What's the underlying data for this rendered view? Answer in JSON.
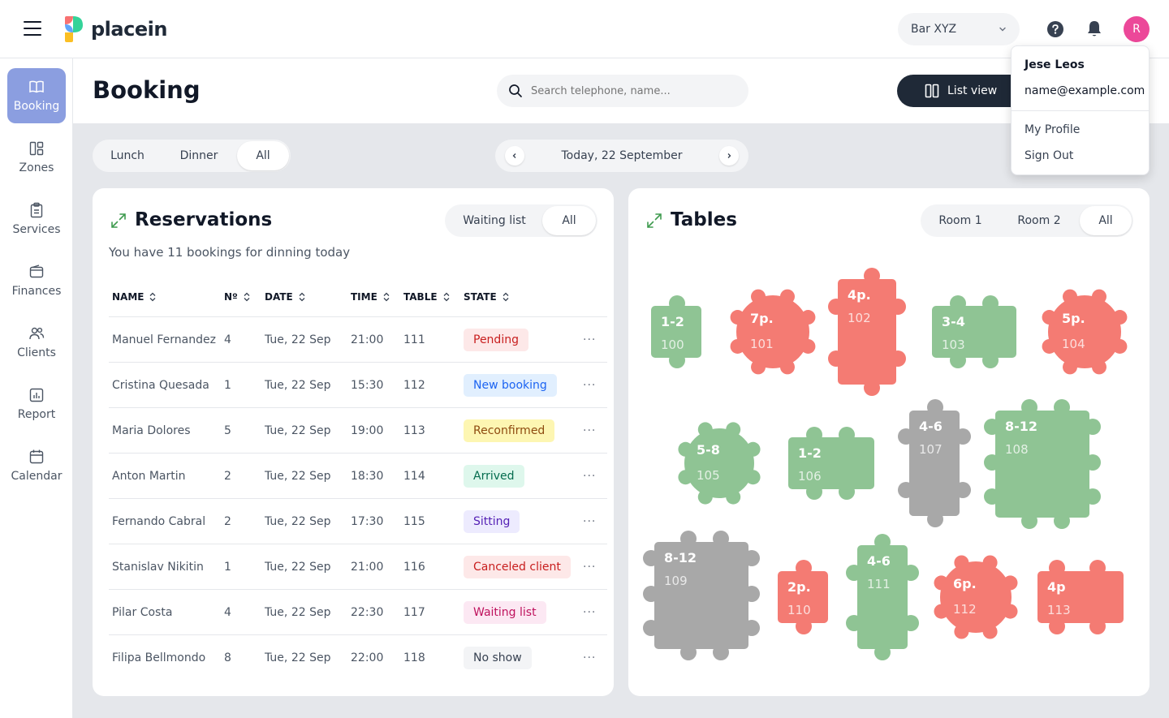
{
  "app": {
    "logo_text": "placein"
  },
  "topbar": {
    "venue": "Bar XYZ",
    "avatar_initial": "R",
    "colors": {
      "avatar": "#ec4899"
    }
  },
  "user_menu": {
    "name": "Jese Leos",
    "email": "name@example.com",
    "items": [
      "My Profile",
      "Sign Out"
    ]
  },
  "sidebar": {
    "items": [
      {
        "label": "Booking",
        "icon": "book-icon",
        "active": true
      },
      {
        "label": "Zones",
        "icon": "layout-icon"
      },
      {
        "label": "Services",
        "icon": "clipboard-icon"
      },
      {
        "label": "Finances",
        "icon": "wallet-icon"
      },
      {
        "label": "Clients",
        "icon": "users-icon"
      },
      {
        "label": "Report",
        "icon": "chart-icon"
      },
      {
        "label": "Calendar",
        "icon": "calendar-icon"
      }
    ]
  },
  "header": {
    "title": "Booking",
    "search_placeholder": "Search telephone, name...",
    "list_view_label": "List view"
  },
  "filters": {
    "meal": [
      "Lunch",
      "Dinner",
      "All"
    ],
    "meal_active": "All",
    "date_label": "Today, 22 September"
  },
  "reservations": {
    "title": "Reservations",
    "filter": [
      "Waiting list",
      "All"
    ],
    "filter_active": "All",
    "summary": "You have 11 bookings for dinning today",
    "columns": [
      "NAME",
      "Nº",
      "DATE",
      "TIME",
      "TABLE",
      "STATE"
    ],
    "rows": [
      {
        "name": "Manuel Fernandez",
        "n": "4",
        "date": "Tue, 22 Sep",
        "time": "21:00",
        "table": "111",
        "state": "Pending",
        "tone": "red"
      },
      {
        "name": "Cristina Quesada",
        "n": "1",
        "date": "Tue, 22 Sep",
        "time": "15:30",
        "table": "112",
        "state": "New booking",
        "tone": "blue"
      },
      {
        "name": "Maria Dolores",
        "n": "5",
        "date": "Tue, 22 Sep",
        "time": "19:00",
        "table": "113",
        "state": "Reconfirmed",
        "tone": "yellow"
      },
      {
        "name": "Anton Martin",
        "n": "2",
        "date": "Tue, 22 Sep",
        "time": "18:30",
        "table": "114",
        "state": "Arrived",
        "tone": "green"
      },
      {
        "name": "Fernando Cabral",
        "n": "2",
        "date": "Tue, 22 Sep",
        "time": "17:30",
        "table": "115",
        "state": "Sitting",
        "tone": "purple"
      },
      {
        "name": "Stanislav Nikitin",
        "n": "1",
        "date": "Tue, 22 Sep",
        "time": "21:00",
        "table": "116",
        "state": "Canceled client",
        "tone": "red"
      },
      {
        "name": "Pilar Costa",
        "n": "4",
        "date": "Tue, 22 Sep",
        "time": "22:30",
        "table": "117",
        "state": "Waiting list",
        "tone": "pink"
      },
      {
        "name": "Filipa Bellmondo",
        "n": "8",
        "date": "Tue, 22 Sep",
        "time": "22:00",
        "table": "118",
        "state": "No show",
        "tone": "gray"
      }
    ],
    "tones": {
      "red": {
        "bg": "#fde8e8",
        "fg": "#c81e1e"
      },
      "blue": {
        "bg": "#e1effe",
        "fg": "#1c64f2"
      },
      "yellow": {
        "bg": "#fdf6b2",
        "fg": "#8e4b10"
      },
      "green": {
        "bg": "#def7ec",
        "fg": "#046c4e"
      },
      "purple": {
        "bg": "#edebfe",
        "fg": "#5521b5"
      },
      "pink": {
        "bg": "#fce8f3",
        "fg": "#bf125d"
      },
      "gray": {
        "bg": "#f3f4f6",
        "fg": "#374151"
      }
    }
  },
  "tables_panel": {
    "title": "Tables",
    "rooms": [
      "Room 1",
      "Room 2",
      "All"
    ],
    "room_active": "All",
    "colors": {
      "green": "#8fc494",
      "red": "#f47b73",
      "gray": "#a8a8a8"
    },
    "tables": [
      {
        "label": "1-2",
        "number": "100",
        "status": "green"
      },
      {
        "label": "7p.",
        "number": "101",
        "status": "red"
      },
      {
        "label": "4p.",
        "number": "102",
        "status": "red"
      },
      {
        "label": "3-4",
        "number": "103",
        "status": "green"
      },
      {
        "label": "5p.",
        "number": "104",
        "status": "red"
      },
      {
        "label": "5-8",
        "number": "105",
        "status": "green"
      },
      {
        "label": "1-2",
        "number": "106",
        "status": "green"
      },
      {
        "label": "4-6",
        "number": "107",
        "status": "gray"
      },
      {
        "label": "8-12",
        "number": "108",
        "status": "green"
      },
      {
        "label": "8-12",
        "number": "109",
        "status": "gray"
      },
      {
        "label": "2p.",
        "number": "110",
        "status": "red"
      },
      {
        "label": "4-6",
        "number": "111",
        "status": "green"
      },
      {
        "label": "6p.",
        "number": "112",
        "status": "red"
      },
      {
        "label": "4p",
        "number": "113",
        "status": "red"
      }
    ]
  }
}
